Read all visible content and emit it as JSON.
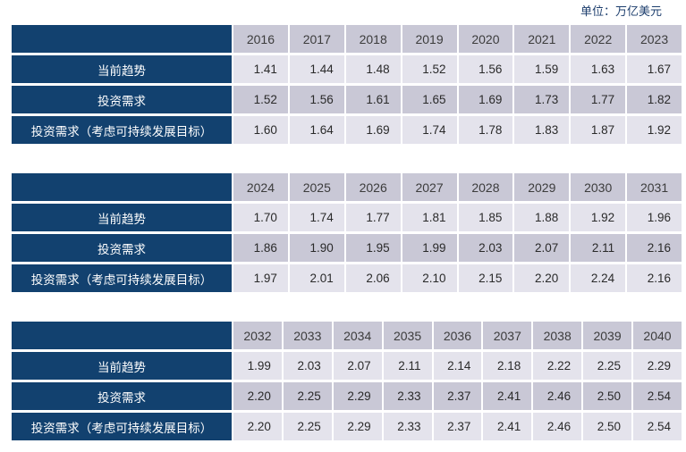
{
  "unit_label": "单位：万亿美元",
  "colors": {
    "navy": "#12416f",
    "cell_dark": "#c9c8d6",
    "cell_light": "#e4e3ec",
    "unit_text": "#1e3f6e",
    "year_text": "#3c3c3c",
    "value_text": "#2a2a2a"
  },
  "chart_data": [
    {
      "type": "table",
      "name": "investment-2016-2023",
      "columns": [
        "2016",
        "2017",
        "2018",
        "2019",
        "2020",
        "2021",
        "2022",
        "2023"
      ],
      "rows": [
        {
          "label": "当前趋势",
          "values": [
            "1.41",
            "1.44",
            "1.48",
            "1.52",
            "1.56",
            "1.59",
            "1.63",
            "1.67"
          ]
        },
        {
          "label": "投资需求",
          "values": [
            "1.52",
            "1.56",
            "1.61",
            "1.65",
            "1.69",
            "1.73",
            "1.77",
            "1.82"
          ]
        },
        {
          "label": "投资需求（考虑可持续发展目标）",
          "values": [
            "1.60",
            "1.64",
            "1.69",
            "1.74",
            "1.78",
            "1.83",
            "1.87",
            "1.92"
          ]
        }
      ]
    },
    {
      "type": "table",
      "name": "investment-2024-2031",
      "columns": [
        "2024",
        "2025",
        "2026",
        "2027",
        "2028",
        "2029",
        "2030",
        "2031"
      ],
      "rows": [
        {
          "label": "当前趋势",
          "values": [
            "1.70",
            "1.74",
            "1.77",
            "1.81",
            "1.85",
            "1.88",
            "1.92",
            "1.96"
          ]
        },
        {
          "label": "投资需求",
          "values": [
            "1.86",
            "1.90",
            "1.95",
            "1.99",
            "2.03",
            "2.07",
            "2.11",
            "2.16"
          ]
        },
        {
          "label": "投资需求（考虑可持续发展目标）",
          "values": [
            "1.97",
            "2.01",
            "2.06",
            "2.10",
            "2.15",
            "2.20",
            "2.24",
            "2.16"
          ]
        }
      ]
    },
    {
      "type": "table",
      "name": "investment-2032-2040",
      "columns": [
        "2032",
        "2033",
        "2034",
        "2035",
        "2036",
        "2037",
        "2038",
        "2039",
        "2040"
      ],
      "rows": [
        {
          "label": "当前趋势",
          "values": [
            "1.99",
            "2.03",
            "2.07",
            "2.11",
            "2.14",
            "2.18",
            "2.22",
            "2.25",
            "2.29"
          ]
        },
        {
          "label": "投资需求",
          "values": [
            "2.20",
            "2.25",
            "2.29",
            "2.33",
            "2.37",
            "2.41",
            "2.46",
            "2.50",
            "2.54"
          ]
        },
        {
          "label": "投资需求（考虑可持续发展目标）",
          "values": [
            "2.20",
            "2.25",
            "2.29",
            "2.33",
            "2.37",
            "2.41",
            "2.46",
            "2.50",
            "2.54"
          ]
        }
      ]
    }
  ]
}
